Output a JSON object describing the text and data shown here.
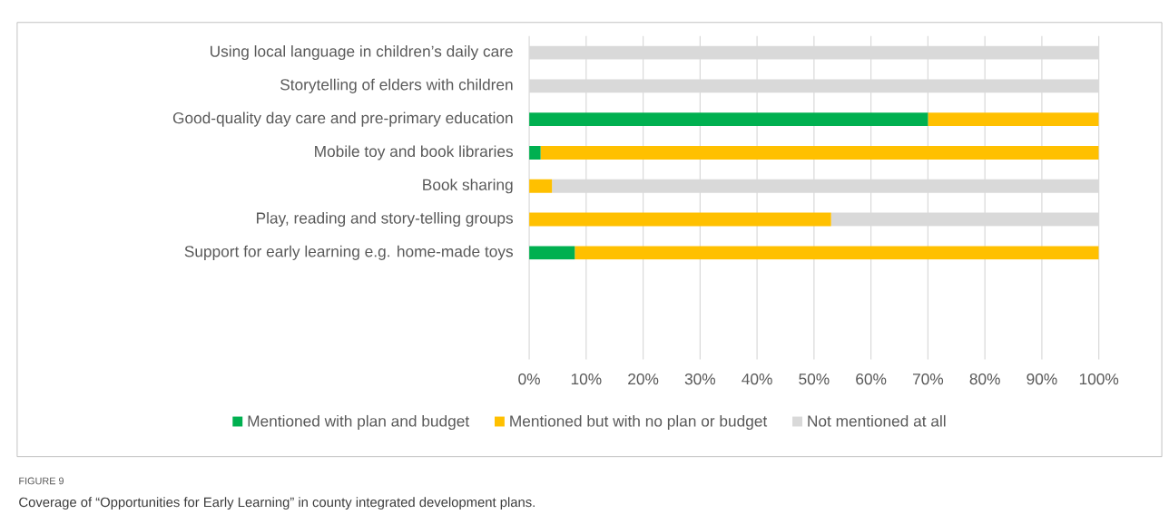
{
  "chart_data": {
    "type": "bar",
    "orientation": "horizontal",
    "stacked": true,
    "categories": [
      "Using local language in children’s daily care",
      "Storytelling of elders with children",
      "Good-quality day care and pre-primary education",
      "Mobile toy and book libraries",
      "Book sharing",
      "Play, reading and story-telling groups",
      "Support for early learning e.g. home-made toys"
    ],
    "series": [
      {
        "name": "Mentioned with plan and budget",
        "color": "#00b050",
        "values": [
          0,
          0,
          70,
          2,
          0,
          0,
          8
        ]
      },
      {
        "name": "Mentioned but with no plan or budget",
        "color": "#ffc000",
        "values": [
          0,
          0,
          30,
          98,
          4,
          53,
          92
        ]
      },
      {
        "name": "Not mentioned at all",
        "color": "#d9d9d9",
        "values": [
          100,
          100,
          0,
          0,
          96,
          47,
          0
        ]
      }
    ],
    "xlim": [
      0,
      100
    ],
    "xticks": [
      {
        "value": 0,
        "label": "0%"
      },
      {
        "value": 10,
        "label": "10%"
      },
      {
        "value": 20,
        "label": "20%"
      },
      {
        "value": 30,
        "label": "30%"
      },
      {
        "value": 40,
        "label": "40%"
      },
      {
        "value": 50,
        "label": "50%"
      },
      {
        "value": 60,
        "label": "60%"
      },
      {
        "value": 70,
        "label": "70%"
      },
      {
        "value": 80,
        "label": "80%"
      },
      {
        "value": 90,
        "label": "90%"
      },
      {
        "value": 100,
        "label": "100%"
      }
    ],
    "grid": "x",
    "legend": "bottom",
    "annotations": [
      "FIGURE 9",
      "Coverage of “Opportunities for Early Learning” in county integrated development plans."
    ]
  }
}
